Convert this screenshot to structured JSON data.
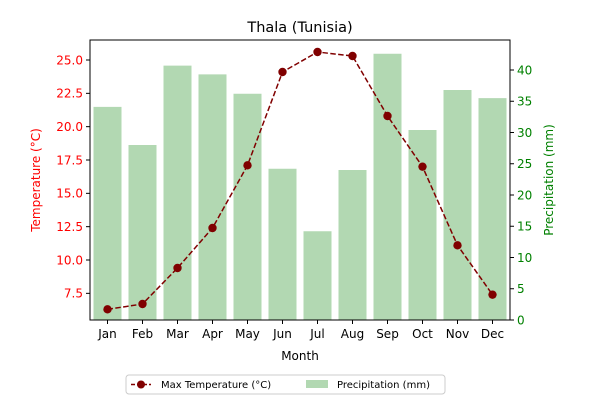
{
  "chart_data": {
    "type": "bar",
    "title": "Thala (Tunisia)",
    "xlabel": "Month",
    "ylabel_left": "Temperature (°C)",
    "ylabel_right": "Precipitation (mm)",
    "categories": [
      "Jan",
      "Feb",
      "Mar",
      "Apr",
      "May",
      "Jun",
      "Jul",
      "Aug",
      "Sep",
      "Oct",
      "Nov",
      "Dec"
    ],
    "series": [
      {
        "name": "Max Temperature (°C)",
        "kind": "line",
        "axis": "left",
        "color": "#800000",
        "values": [
          6.3,
          6.7,
          9.4,
          12.4,
          17.1,
          24.1,
          25.6,
          25.3,
          20.8,
          17.0,
          11.1,
          7.4
        ]
      },
      {
        "name": "Precipitation (mm)",
        "kind": "bar",
        "axis": "right",
        "color": "#b2d8b2",
        "values": [
          34.1,
          28.0,
          40.7,
          39.3,
          36.2,
          24.2,
          14.2,
          24.0,
          42.6,
          30.4,
          36.8,
          35.5
        ]
      }
    ],
    "ylim_left": [
      5.5,
      26.5
    ],
    "ylim_right": [
      0,
      44.8
    ],
    "yticks_left": [
      "7.5",
      "10.0",
      "12.5",
      "15.0",
      "17.5",
      "20.0",
      "22.5",
      "25.0"
    ],
    "yticks_right": [
      "0",
      "5",
      "10",
      "15",
      "20",
      "25",
      "30",
      "35",
      "40"
    ],
    "left_axis_color": "#ff0000",
    "right_axis_color": "#008000",
    "legend_position": "bottom-center",
    "grid": false
  }
}
